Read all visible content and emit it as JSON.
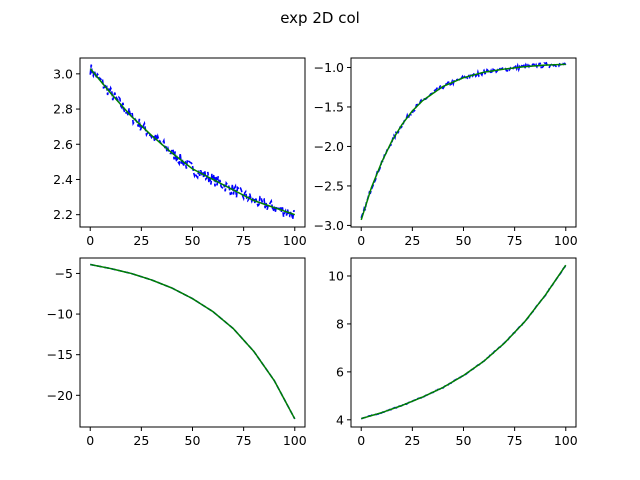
{
  "title": "exp 2D col",
  "colors": {
    "noisy": "#0000ff",
    "fit": "#008000",
    "axes": "#000000",
    "background": "#ffffff"
  },
  "chart_data": [
    {
      "type": "line",
      "position": "top-left",
      "xlim": [
        -5,
        105
      ],
      "ylim": [
        2.13,
        3.09
      ],
      "xticks": [
        0,
        25,
        50,
        75,
        100
      ],
      "yticks": [
        2.2,
        2.4,
        2.6,
        2.8,
        3.0
      ],
      "ytick_labels": [
        "2.2",
        "2.4",
        "2.6",
        "2.8",
        "3.0"
      ],
      "grid": false,
      "legend": false,
      "x": [
        0,
        10,
        20,
        30,
        40,
        50,
        60,
        70,
        80,
        90,
        100
      ],
      "series": [
        {
          "style": "noisy",
          "values": [
            3.03,
            2.89,
            2.76,
            2.65,
            2.55,
            2.46,
            2.4,
            2.34,
            2.28,
            2.24,
            2.2
          ],
          "noise": 0.035
        },
        {
          "style": "fit",
          "values": [
            3.03,
            2.89,
            2.76,
            2.65,
            2.55,
            2.46,
            2.4,
            2.34,
            2.28,
            2.24,
            2.2
          ]
        }
      ]
    },
    {
      "type": "line",
      "position": "top-right",
      "xlim": [
        -5,
        105
      ],
      "ylim": [
        -3.02,
        -0.88
      ],
      "xticks": [
        0,
        25,
        50,
        75,
        100
      ],
      "yticks": [
        -3.0,
        -2.5,
        -2.0,
        -1.5,
        -1.0
      ],
      "ytick_labels": [
        "−3.0",
        "−2.5",
        "−2.0",
        "−1.5",
        "−1.0"
      ],
      "grid": false,
      "legend": false,
      "x": [
        0,
        5,
        10,
        15,
        20,
        25,
        30,
        40,
        50,
        60,
        70,
        80,
        90,
        100
      ],
      "series": [
        {
          "style": "noisy",
          "values": [
            -2.93,
            -2.52,
            -2.2,
            -1.93,
            -1.72,
            -1.55,
            -1.42,
            -1.24,
            -1.13,
            -1.06,
            -1.02,
            -0.99,
            -0.97,
            -0.96
          ],
          "noise": 0.03
        },
        {
          "style": "fit",
          "values": [
            -2.93,
            -2.52,
            -2.2,
            -1.93,
            -1.72,
            -1.55,
            -1.42,
            -1.24,
            -1.13,
            -1.06,
            -1.02,
            -0.99,
            -0.97,
            -0.96
          ]
        }
      ]
    },
    {
      "type": "line",
      "position": "bottom-left",
      "xlim": [
        -5,
        105
      ],
      "ylim": [
        -23.9,
        -3.1
      ],
      "xticks": [
        0,
        25,
        50,
        75,
        100
      ],
      "yticks": [
        -20,
        -15,
        -10,
        -5
      ],
      "ytick_labels": [
        "−20",
        "−15",
        "−10",
        "−5"
      ],
      "grid": false,
      "legend": false,
      "x": [
        0,
        10,
        20,
        30,
        40,
        50,
        60,
        70,
        80,
        90,
        100
      ],
      "series": [
        {
          "style": "noisy",
          "values": [
            -3.9,
            -4.4,
            -5.0,
            -5.8,
            -6.8,
            -8.1,
            -9.7,
            -11.8,
            -14.6,
            -18.2,
            -22.9
          ],
          "noise": 0.0
        },
        {
          "style": "fit",
          "values": [
            -3.9,
            -4.4,
            -5.0,
            -5.8,
            -6.8,
            -8.1,
            -9.7,
            -11.8,
            -14.6,
            -18.2,
            -22.9
          ]
        }
      ]
    },
    {
      "type": "line",
      "position": "bottom-right",
      "xlim": [
        -5,
        105
      ],
      "ylim": [
        3.7,
        10.75
      ],
      "xticks": [
        0,
        25,
        50,
        75,
        100
      ],
      "yticks": [
        4,
        6,
        8,
        10
      ],
      "ytick_labels": [
        "4",
        "6",
        "8",
        "10"
      ],
      "grid": false,
      "legend": false,
      "x": [
        0,
        10,
        20,
        30,
        40,
        50,
        60,
        70,
        80,
        90,
        100
      ],
      "series": [
        {
          "style": "noisy",
          "values": [
            4.05,
            4.3,
            4.6,
            4.95,
            5.35,
            5.85,
            6.45,
            7.2,
            8.1,
            9.2,
            10.45
          ],
          "noise": 0.02
        },
        {
          "style": "fit",
          "values": [
            4.05,
            4.3,
            4.6,
            4.95,
            5.35,
            5.85,
            6.45,
            7.2,
            8.1,
            9.2,
            10.45
          ]
        }
      ]
    }
  ]
}
